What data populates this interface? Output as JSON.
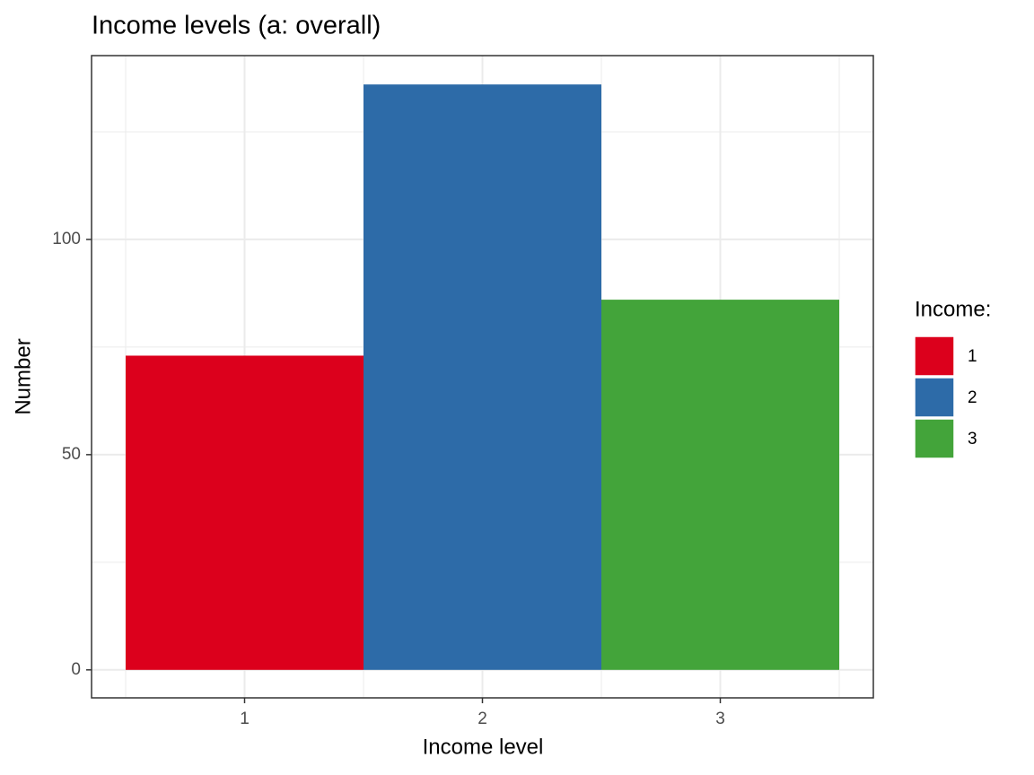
{
  "chart_data": {
    "type": "bar",
    "title": "Income levels (a: overall)",
    "x_label": "Income level",
    "y_label": "Number",
    "categories": [
      "1",
      "2",
      "3"
    ],
    "values": [
      73,
      136,
      86
    ],
    "colors": [
      "#dc001c",
      "#2d6ba8",
      "#43a43a"
    ],
    "legend_title": "Income:",
    "legend_position": "right",
    "ylim": [
      -6.5,
      142.7
    ],
    "yticks": [
      0,
      50,
      100
    ],
    "yminor_ticks": [
      25,
      75,
      125
    ],
    "grid": true
  }
}
